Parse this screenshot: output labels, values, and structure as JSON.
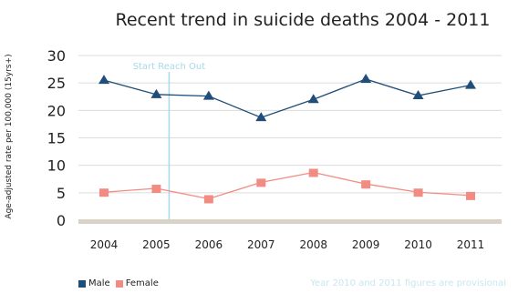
{
  "chart_data": {
    "type": "line",
    "title": "Recent trend in suicide deaths 2004 - 2011",
    "ylabel": "Age-adjusted rate per 100,000 (15yrs+)",
    "xlabel": "",
    "categories": [
      "2004",
      "2005",
      "2006",
      "2007",
      "2008",
      "2009",
      "2010",
      "2011"
    ],
    "ylim": [
      0,
      30
    ],
    "yticks": [
      0,
      5,
      10,
      15,
      20,
      25,
      30
    ],
    "grid": true,
    "legend_position": "bottom-left",
    "series": [
      {
        "name": "Male",
        "marker": "triangle",
        "color": "#1f4e79",
        "values": [
          25.5,
          22.9,
          22.6,
          18.7,
          22.0,
          25.7,
          22.7,
          24.6
        ]
      },
      {
        "name": "Female",
        "marker": "square",
        "color": "#f28b82",
        "values": [
          5.1,
          5.8,
          3.9,
          6.9,
          8.7,
          6.6,
          5.1,
          4.5
        ]
      }
    ],
    "annotations": [
      {
        "text": "Start Reach Out",
        "x": "2005",
        "type": "vertical-line",
        "color": "#a8d8ea"
      }
    ]
  },
  "legend": {
    "male_label": "Male",
    "female_label": "Female"
  },
  "footnote": "Year 2010 and 2011 figures are provisional"
}
